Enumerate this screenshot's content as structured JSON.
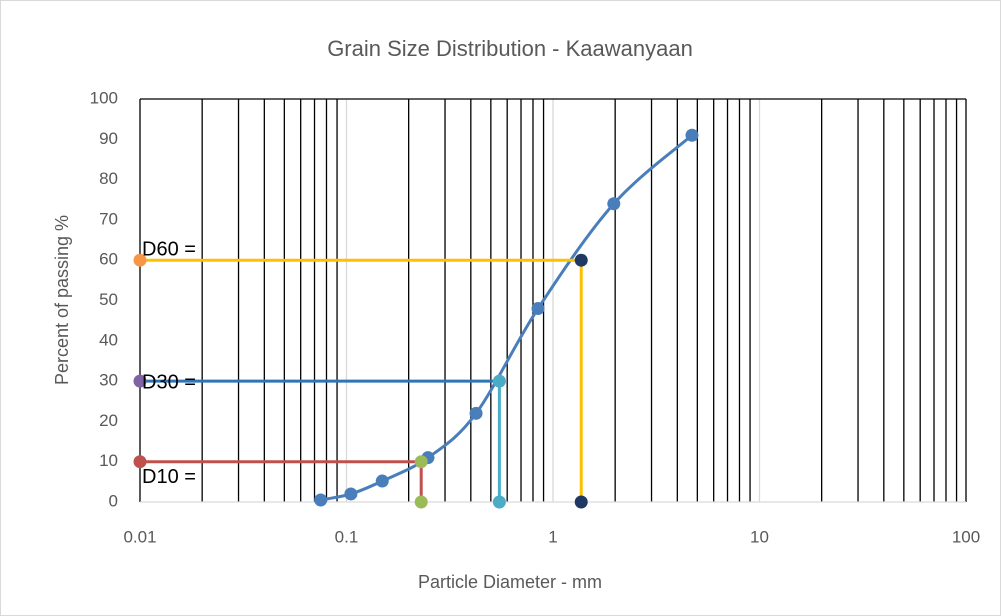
{
  "chart_data": {
    "type": "scatter",
    "title": "Grain Size Distribution - Kaawanyaan",
    "x_label": "Particle Diameter - mm",
    "y_label": "Percent of passing %",
    "xscale": "log",
    "xlim": [
      0.01,
      100
    ],
    "xticks": [
      0.01,
      0.1,
      1,
      10,
      100
    ],
    "ylim": [
      0,
      100
    ],
    "yticks": [
      0,
      10,
      20,
      30,
      40,
      50,
      60,
      70,
      80,
      90,
      100
    ],
    "grid": true,
    "series": [
      {
        "mode": "smooth-markers",
        "color": "#4a7ebb",
        "x": [
          0.075,
          0.105,
          0.149,
          0.248,
          0.424,
          0.846,
          1.97,
          4.71
        ],
        "values": [
          0.5,
          2,
          5.2,
          11,
          22,
          48,
          74,
          91
        ]
      },
      {
        "mode": "line",
        "color": "#ffc000",
        "x": [
          0.01,
          1.37
        ],
        "values": [
          60,
          60
        ]
      },
      {
        "mode": "line",
        "color": "#ffc000",
        "x": [
          1.37,
          1.37
        ],
        "values": [
          60,
          0
        ]
      },
      {
        "mode": "line",
        "color": "#2e75b6",
        "x": [
          0.01,
          0.55
        ],
        "values": [
          30,
          30
        ]
      },
      {
        "mode": "line",
        "color": "#4bacc6",
        "x": [
          0.55,
          0.55
        ],
        "values": [
          30,
          0
        ]
      },
      {
        "mode": "line",
        "color": "#c0504d",
        "x": [
          0.01,
          0.23
        ],
        "values": [
          10,
          10
        ]
      },
      {
        "mode": "line",
        "color": "#c0504d",
        "x": [
          0.23,
          0.23
        ],
        "values": [
          10,
          0
        ]
      },
      {
        "mode": "markers",
        "color": "#f79646",
        "x": [
          0.01
        ],
        "values": [
          60
        ]
      },
      {
        "mode": "markers",
        "color": "#8064a2",
        "x": [
          0.01
        ],
        "values": [
          30
        ]
      },
      {
        "mode": "markers",
        "color": "#c0504d",
        "x": [
          0.01
        ],
        "values": [
          10
        ]
      },
      {
        "mode": "markers",
        "color": "#1f3864",
        "x": [
          1.37,
          1.37
        ],
        "values": [
          60,
          0
        ]
      },
      {
        "mode": "markers",
        "color": "#4bacc6",
        "x": [
          0.55,
          0.55
        ],
        "values": [
          30,
          0
        ]
      },
      {
        "mode": "markers",
        "color": "#9bbb59",
        "x": [
          0.23,
          0.23
        ],
        "values": [
          10,
          0
        ]
      }
    ],
    "annotations": [
      {
        "text": "D60 =",
        "x": 0.01,
        "y": 62.5
      },
      {
        "text": "D30 =",
        "x": 0.01,
        "y": 29.5
      },
      {
        "text": "D10 =",
        "x": 0.01,
        "y": 6
      }
    ]
  }
}
